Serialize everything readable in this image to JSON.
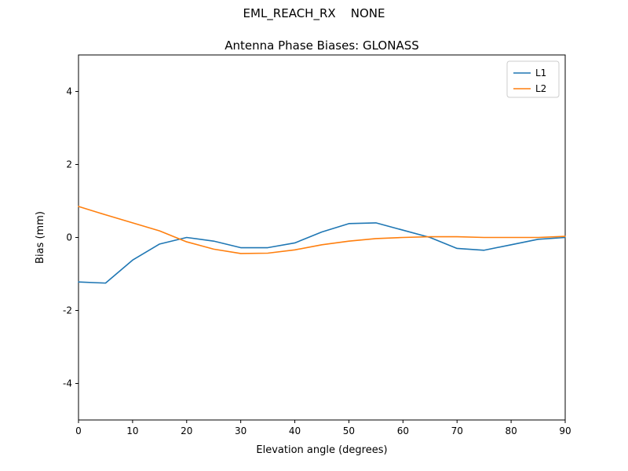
{
  "figure": {
    "suptitle": "EML_REACH_RX    NONE",
    "title": "Antenna Phase Biases: GLONASS"
  },
  "chart_data": {
    "type": "line",
    "suptitle": "EML_REACH_RX    NONE",
    "title": "Antenna Phase Biases: GLONASS",
    "xlabel": "Elevation angle (degrees)",
    "ylabel": "Bias (mm)",
    "xlim": [
      0,
      90
    ],
    "ylim": [
      -5,
      5
    ],
    "xticks": [
      0,
      10,
      20,
      30,
      40,
      50,
      60,
      70,
      80,
      90
    ],
    "yticks": [
      -4,
      -2,
      0,
      2,
      4
    ],
    "grid": false,
    "legend_position": "upper right",
    "frame_color": "#000000",
    "legend_border_color": "#cccccc",
    "x": [
      0,
      5,
      10,
      15,
      20,
      25,
      30,
      35,
      40,
      45,
      50,
      55,
      60,
      65,
      70,
      75,
      80,
      85,
      90
    ],
    "series": [
      {
        "name": "L1",
        "color": "#1f77b4",
        "values": [
          -1.22,
          -1.25,
          -0.62,
          -0.18,
          0.0,
          -0.1,
          -0.28,
          -0.28,
          -0.15,
          0.15,
          0.38,
          0.4,
          0.2,
          0.0,
          -0.3,
          -0.35,
          -0.2,
          -0.05,
          0.0
        ]
      },
      {
        "name": "L2",
        "color": "#ff7f0e",
        "values": [
          0.85,
          0.62,
          0.4,
          0.18,
          -0.12,
          -0.32,
          -0.44,
          -0.43,
          -0.34,
          -0.2,
          -0.1,
          -0.03,
          0.0,
          0.02,
          0.02,
          0.0,
          0.0,
          0.0,
          0.03
        ]
      }
    ]
  }
}
